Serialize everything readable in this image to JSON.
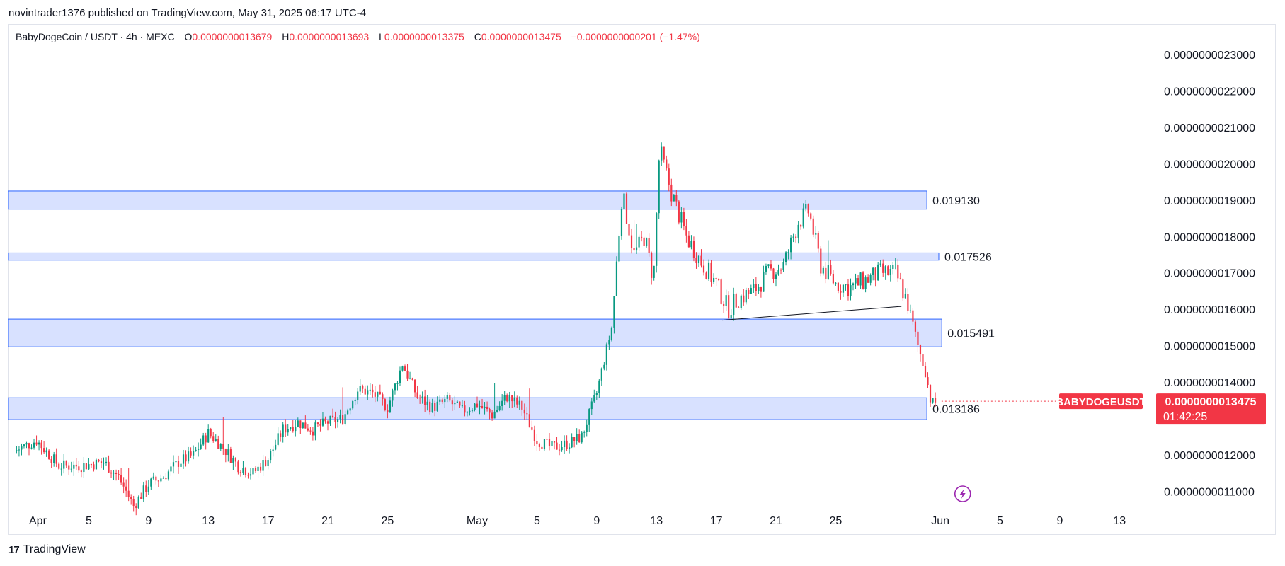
{
  "publisher_line": "novintrader1376 published on TradingView.com, May 31, 2025 06:17 UTC-4",
  "header": {
    "symbol": "BabyDogeCoin / USDT · 4h · MEXC",
    "open_label": "O",
    "open": "0.0000000013679",
    "high_label": "H",
    "high": "0.0000000013693",
    "low_label": "L",
    "low": "0.0000000013375",
    "close_label": "C",
    "close": "0.0000000013475",
    "change": "−0.0000000000201 (−1.47%)"
  },
  "footer": {
    "brand": "TradingView",
    "logo_icon": "tradingview-logo-icon"
  },
  "colors": {
    "up": "#089981",
    "down": "#f23645",
    "zone_fill": "#d1dcff",
    "zone_border": "#2962ff",
    "trendline": "#131722",
    "price_label": "#f23645",
    "grid_text": "#131722"
  },
  "chart_data": {
    "type": "candlestick",
    "title": "",
    "y_scale": "linear",
    "ylim": [
      1.05e-09,
      2.3e-09
    ],
    "grid": false,
    "y_ticks": [
      "0.0000000023000",
      "0.0000000022000",
      "0.0000000021000",
      "0.0000000020000",
      "0.0000000019000",
      "0.0000000018000",
      "0.0000000017000",
      "0.0000000016000",
      "0.0000000015000",
      "0.0000000014000",
      "0.0000000012000",
      "0.0000000011000"
    ],
    "y_tick_values": [
      2.3,
      2.2,
      2.1,
      2.0,
      1.9,
      1.8,
      1.7,
      1.6,
      1.5,
      1.4,
      1.2,
      1.1
    ],
    "y_unit_note": "",
    "x_ticks": [
      "Apr",
      "5",
      "9",
      "13",
      "17",
      "21",
      "25",
      "May",
      "5",
      "9",
      "13",
      "17",
      "21",
      "25",
      "Jun",
      "5",
      "9",
      "13"
    ],
    "x_tick_days": [
      1,
      5,
      9,
      13,
      17,
      21,
      25,
      31,
      35,
      39,
      43,
      47,
      51,
      55,
      62,
      66,
      70,
      74
    ],
    "zones": [
      {
        "label": "0.019130",
        "low": 1.875,
        "high": 1.925,
        "end_day": 61.1
      },
      {
        "label": "0.017526",
        "low": 1.735,
        "high": 1.755,
        "end_day": 61.9
      },
      {
        "label": "0.015491",
        "low": 1.497,
        "high": 1.573,
        "end_day": 62.1
      },
      {
        "label": "0.013186",
        "low": 1.297,
        "high": 1.357,
        "end_day": 61.1
      }
    ],
    "trendline": {
      "from_day": 47.4,
      "from_price": 1.57,
      "to_day": 59.4,
      "to_price": 1.608
    },
    "last_price": {
      "symbol_label": "BABYDOGEUSDT",
      "price": "0.0000000013475",
      "countdown": "01:42:25",
      "value": 1.3475
    },
    "series_anchor_points": [
      [
        0.0,
        1.21
      ],
      [
        1.5,
        1.24
      ],
      [
        3.0,
        1.17
      ],
      [
        4.5,
        1.17
      ],
      [
        6.0,
        1.18
      ],
      [
        7.0,
        1.14
      ],
      [
        8.0,
        1.06
      ],
      [
        9.0,
        1.12
      ],
      [
        10.0,
        1.14
      ],
      [
        11.0,
        1.18
      ],
      [
        12.0,
        1.2
      ],
      [
        13.0,
        1.26
      ],
      [
        14.0,
        1.22
      ],
      [
        15.0,
        1.17
      ],
      [
        16.0,
        1.15
      ],
      [
        17.0,
        1.19
      ],
      [
        18.0,
        1.27
      ],
      [
        19.0,
        1.29
      ],
      [
        20.0,
        1.27
      ],
      [
        21.0,
        1.29
      ],
      [
        22.0,
        1.3
      ],
      [
        23.0,
        1.38
      ],
      [
        24.0,
        1.37
      ],
      [
        25.0,
        1.33
      ],
      [
        26.0,
        1.45
      ],
      [
        27.0,
        1.36
      ],
      [
        28.0,
        1.33
      ],
      [
        29.0,
        1.35
      ],
      [
        30.0,
        1.32
      ],
      [
        31.0,
        1.34
      ],
      [
        32.0,
        1.31
      ],
      [
        33.0,
        1.36
      ],
      [
        34.0,
        1.33
      ],
      [
        35.0,
        1.24
      ],
      [
        36.0,
        1.22
      ],
      [
        37.0,
        1.23
      ],
      [
        38.0,
        1.25
      ],
      [
        39.0,
        1.37
      ],
      [
        40.0,
        1.55
      ],
      [
        40.7,
        1.92
      ],
      [
        41.5,
        1.75
      ],
      [
        42.2,
        1.8
      ],
      [
        42.8,
        1.68
      ],
      [
        43.2,
        2.04
      ],
      [
        44.0,
        1.92
      ],
      [
        45.0,
        1.8
      ],
      [
        46.0,
        1.73
      ],
      [
        47.0,
        1.67
      ],
      [
        47.8,
        1.6
      ],
      [
        48.5,
        1.63
      ],
      [
        49.5,
        1.65
      ],
      [
        50.5,
        1.7
      ],
      [
        51.5,
        1.72
      ],
      [
        52.5,
        1.84
      ],
      [
        53.2,
        1.87
      ],
      [
        54.0,
        1.72
      ],
      [
        55.0,
        1.67
      ],
      [
        56.0,
        1.66
      ],
      [
        57.0,
        1.68
      ],
      [
        58.0,
        1.7
      ],
      [
        59.0,
        1.7
      ],
      [
        59.8,
        1.62
      ],
      [
        60.5,
        1.5
      ],
      [
        61.0,
        1.43
      ],
      [
        61.4,
        1.34
      ],
      [
        61.8,
        1.3475
      ]
    ]
  },
  "icons": {
    "flash_icon": "lightning-bolt-icon"
  }
}
